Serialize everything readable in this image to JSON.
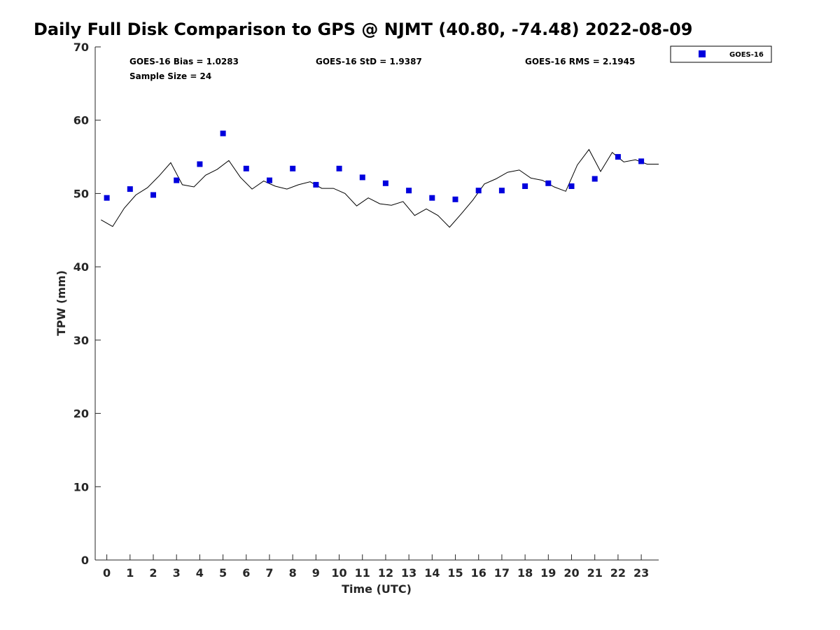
{
  "chart_data": {
    "type": "scatter",
    "title": "Daily Full Disk Comparison to GPS @ NJMT (40.80, -74.48) 2022-08-09",
    "xlabel": "Time (UTC)",
    "ylabel": "TPW (mm)",
    "xlim": [
      -0.5,
      23.75
    ],
    "ylim": [
      0,
      70
    ],
    "x_ticks": [
      0,
      1,
      2,
      3,
      4,
      5,
      6,
      7,
      8,
      9,
      10,
      11,
      12,
      13,
      14,
      15,
      16,
      17,
      18,
      19,
      20,
      21,
      22,
      23
    ],
    "y_ticks": [
      0,
      10,
      20,
      30,
      40,
      50,
      60,
      70
    ],
    "grid": false,
    "legend_position": "top-right (outside plot)",
    "stats": {
      "bias": "GOES-16 Bias = 1.0283",
      "std": "GOES-16 StD = 1.9387",
      "rms": "GOES-16 RMS = 2.1945",
      "sample_size": "Sample Size = 24"
    },
    "series": [
      {
        "name": "GOES-16",
        "marker": "square",
        "color": "#0000dd",
        "x": [
          0,
          1,
          2,
          3,
          4,
          5,
          6,
          7,
          8,
          9,
          10,
          11,
          12,
          13,
          14,
          15,
          16,
          17,
          18,
          19,
          20,
          21,
          22,
          23
        ],
        "y": [
          49.4,
          50.6,
          49.8,
          51.8,
          54.0,
          58.2,
          53.4,
          51.8,
          53.4,
          51.2,
          53.4,
          52.2,
          51.4,
          50.4,
          49.4,
          49.2,
          50.4,
          50.4,
          51.0,
          51.4,
          51.0,
          52.0,
          55.0,
          54.4
        ]
      },
      {
        "type": "line",
        "color": "#000000",
        "x": [
          -0.25,
          0.25,
          0.75,
          1.25,
          1.75,
          2.25,
          2.75,
          3.25,
          3.75,
          4.25,
          4.75,
          5.25,
          5.75,
          6.25,
          6.75,
          7.25,
          7.75,
          8.25,
          8.75,
          9.25,
          9.75,
          10.25,
          10.75,
          11.25,
          11.75,
          12.25,
          12.75,
          13.25,
          13.75,
          14.25,
          14.75,
          15.25,
          15.75,
          16.25,
          16.75,
          17.25,
          17.75,
          18.25,
          18.75,
          19.25,
          19.75,
          20.25,
          20.75,
          21.25,
          21.75,
          22.25,
          22.75,
          23.25,
          23.75
        ],
        "y": [
          46.4,
          45.5,
          48.0,
          49.8,
          50.8,
          52.4,
          54.2,
          51.2,
          50.9,
          52.5,
          53.3,
          54.5,
          52.2,
          50.6,
          51.7,
          51.0,
          50.6,
          51.2,
          51.6,
          50.7,
          50.7,
          50.0,
          48.3,
          49.4,
          48.6,
          48.4,
          48.9,
          47.0,
          47.9,
          47.0,
          45.4,
          47.2,
          49.1,
          51.3,
          52.0,
          52.9,
          53.2,
          52.1,
          51.8,
          50.9,
          50.3,
          53.9,
          56.0,
          53.0,
          55.6,
          54.3,
          54.6,
          54.0,
          54.0
        ]
      }
    ]
  }
}
